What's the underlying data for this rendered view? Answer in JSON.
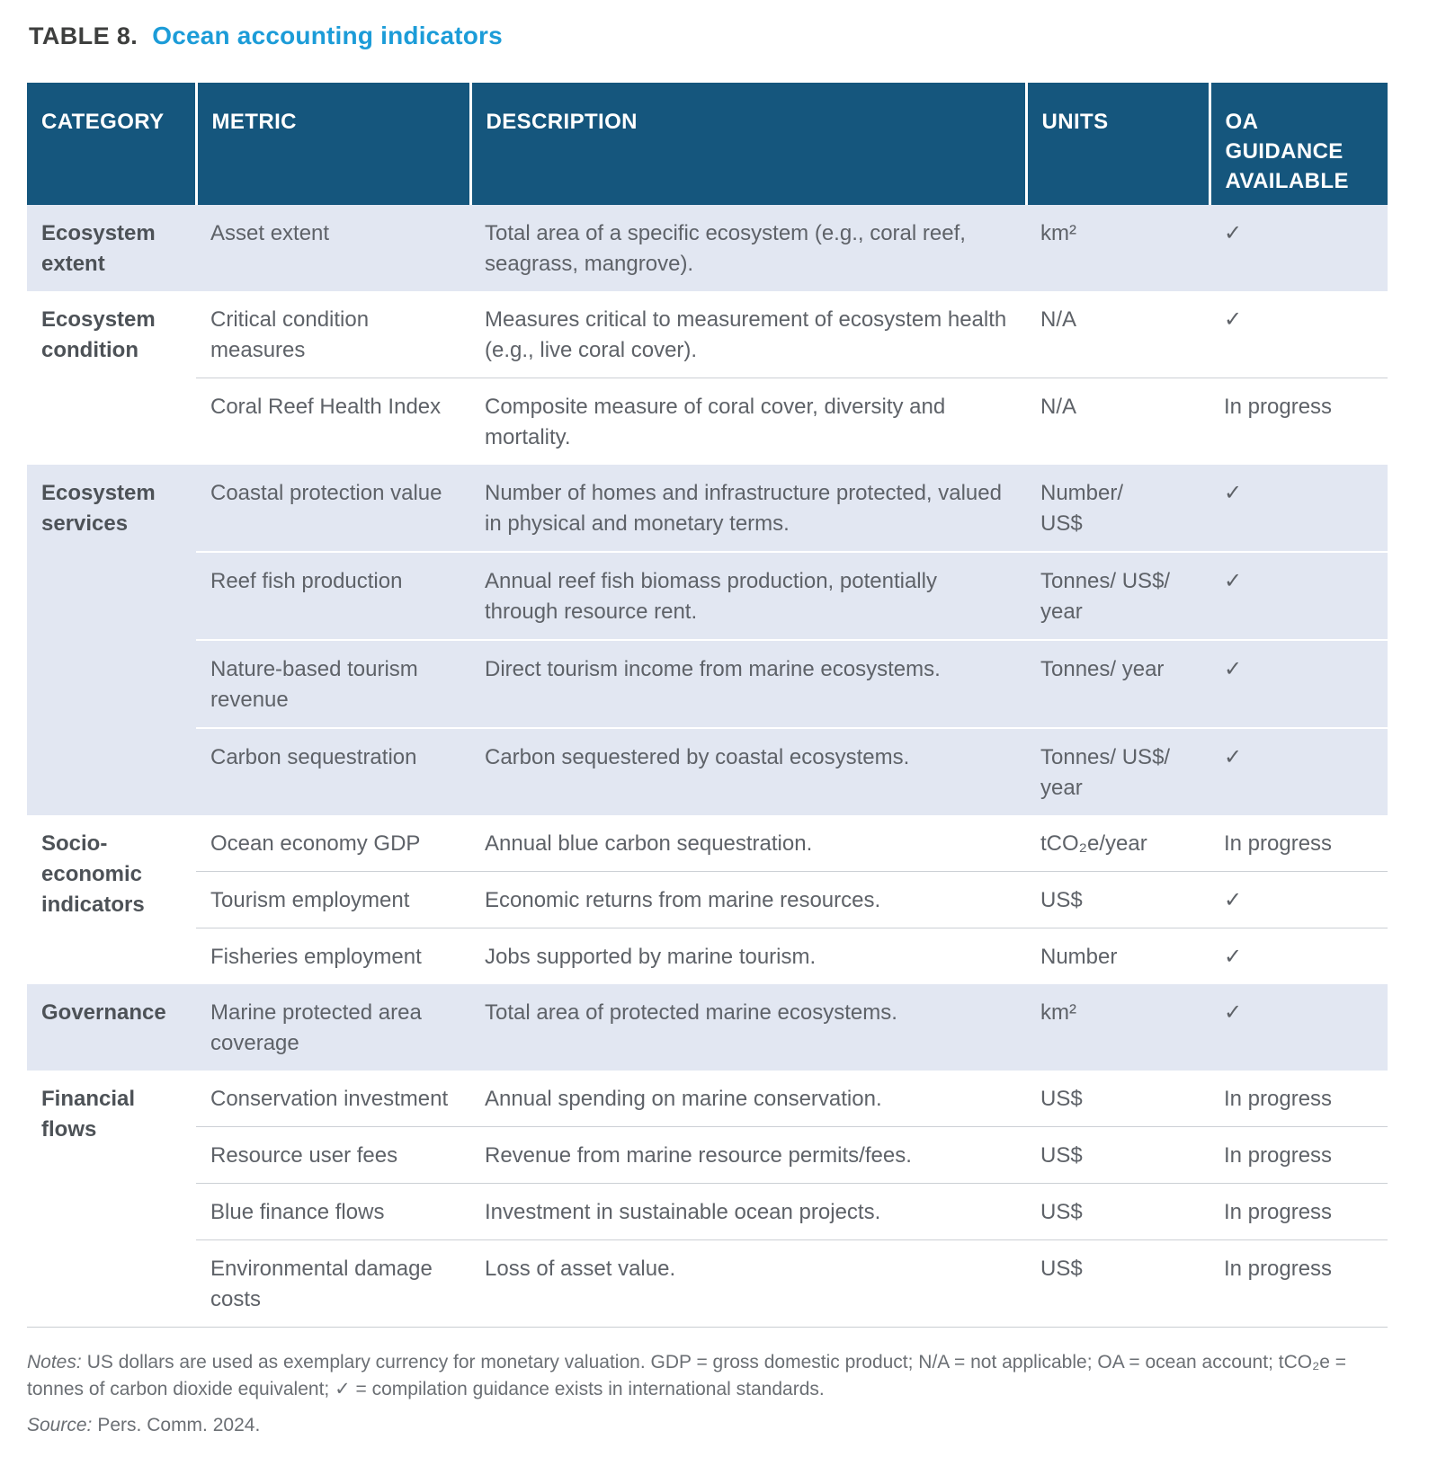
{
  "title": {
    "label": "TABLE 8.",
    "heading": "Ocean accounting indicators"
  },
  "table": {
    "columns": [
      "CATEGORY",
      "METRIC",
      "DESCRIPTION",
      "UNITS",
      "OA GUIDANCE AVAILABLE"
    ],
    "check_glyph": "✓",
    "groups": [
      {
        "category": "Ecosystem extent",
        "shaded": true,
        "rows": [
          {
            "metric": "Asset extent",
            "description": "Total area of a specific ecosystem (e.g., coral reef, seagrass, mangrove).",
            "units": "km²",
            "oa": "✓"
          }
        ]
      },
      {
        "category": "Ecosystem condition",
        "shaded": false,
        "rows": [
          {
            "metric": "Critical condition measures",
            "description": "Measures critical to measurement of ecosystem health (e.g., live coral cover).",
            "units": "N/A",
            "oa": "✓"
          },
          {
            "metric": "Coral Reef Health Index",
            "description": "Composite measure of coral cover, diversity and mortality.",
            "units": "N/A",
            "oa": "In progress"
          }
        ]
      },
      {
        "category": "Ecosystem services",
        "shaded": true,
        "rows": [
          {
            "metric": "Coastal protection value",
            "description": "Number of homes and infrastructure protected, valued in physical and monetary terms.",
            "units": "Number/\nUS$",
            "oa": "✓"
          },
          {
            "metric": "Reef fish production",
            "description": "Annual reef fish biomass production, potentially through resource rent.",
            "units": "Tonnes/ US$/\nyear",
            "oa": "✓"
          },
          {
            "metric": "Nature-based tourism revenue",
            "description": "Direct tourism income from marine ecosystems.",
            "units": "Tonnes/ year",
            "oa": "✓"
          },
          {
            "metric": "Carbon sequestration",
            "description": "Carbon sequestered by coastal ecosystems.",
            "units": "Tonnes/ US$/\nyear",
            "oa": "✓"
          }
        ]
      },
      {
        "category": "Socio-economic indicators",
        "shaded": false,
        "rows": [
          {
            "metric": "Ocean economy GDP",
            "description": "Annual blue carbon sequestration.",
            "units": "tCO₂e/year",
            "oa": "In progress"
          },
          {
            "metric": "Tourism employment",
            "description": "Economic returns from marine resources.",
            "units": "US$",
            "oa": "✓"
          },
          {
            "metric": "Fisheries employment",
            "description": "Jobs supported by marine tourism.",
            "units": "Number",
            "oa": "✓"
          }
        ]
      },
      {
        "category": "Governance",
        "shaded": true,
        "rows": [
          {
            "metric": "Marine protected area coverage",
            "description": "Total area of protected marine ecosystems.",
            "units": "km²",
            "oa": "✓"
          }
        ]
      },
      {
        "category": "Financial flows",
        "shaded": false,
        "rows": [
          {
            "metric": "Conservation investment",
            "description": "Annual spending on marine conservation.",
            "units": "US$",
            "oa": "In progress"
          },
          {
            "metric": "Resource user fees",
            "description": "Revenue from marine resource permits/fees.",
            "units": "US$",
            "oa": "In progress"
          },
          {
            "metric": "Blue finance flows",
            "description": "Investment in sustainable ocean projects.",
            "units": "US$",
            "oa": "In progress"
          },
          {
            "metric": "Environmental damage costs",
            "description": "Loss of asset value.",
            "units": "US$",
            "oa": "In progress"
          }
        ]
      }
    ]
  },
  "footnotes": {
    "notes_label": "Notes:",
    "notes": "US dollars are used as exemplary currency for monetary valuation. GDP = gross domestic product; N/A = not applicable; OA = ocean account; tCO₂e = tonnes of carbon dioxide equivalent; ✓ = compilation guidance exists in international standards.",
    "source_label": "Source:",
    "source": "Pers. Comm. 2024."
  },
  "colors": {
    "header_bg": "#15567d",
    "shaded_row_bg": "#e2e7f2",
    "title_accent": "#1c9cd8",
    "body_text": "#5e6268",
    "category_text": "#4d5257",
    "footnote_text": "#6b6f74",
    "divider_plain": "#ccd0d5",
    "divider_shaded": "#ffffff"
  }
}
